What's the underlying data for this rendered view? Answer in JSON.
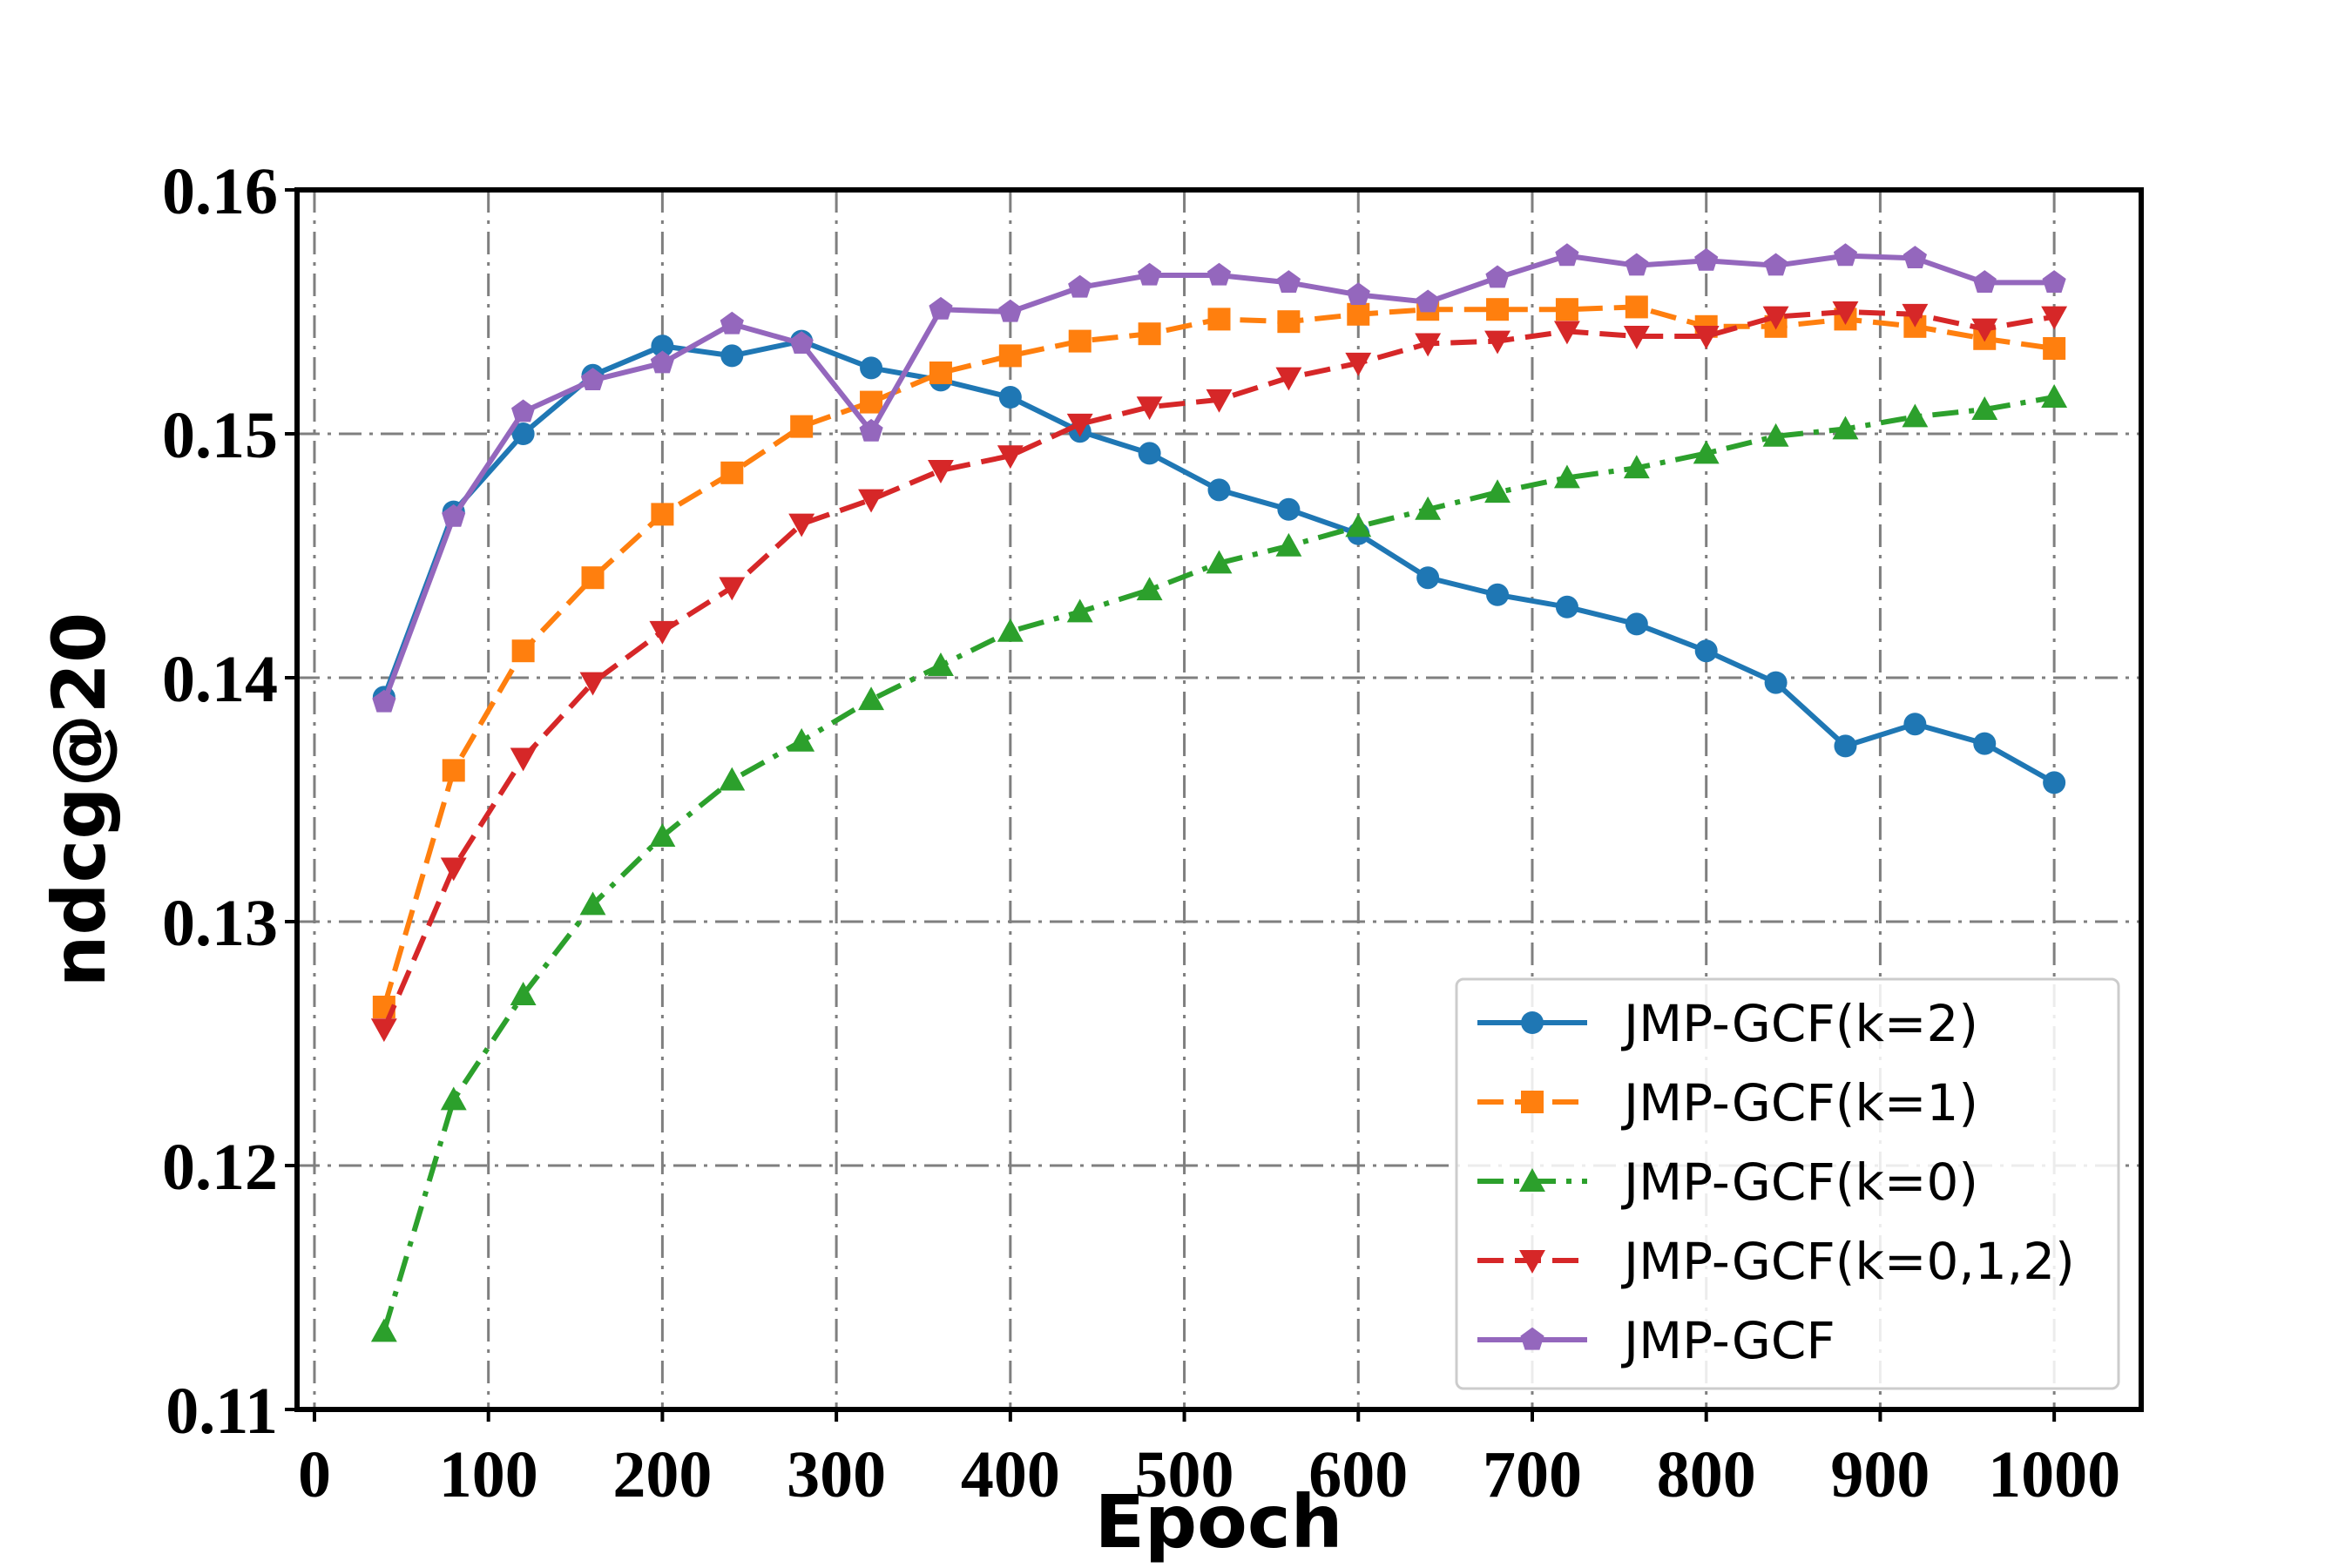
{
  "chart_data": {
    "type": "line",
    "title": "",
    "xlabel": "Epoch",
    "ylabel": "ndcg@20",
    "xlim": [
      -10,
      1050
    ],
    "ylim": [
      0.11,
      0.16
    ],
    "xticks": [
      0,
      100,
      200,
      300,
      400,
      500,
      600,
      700,
      800,
      900,
      1000
    ],
    "yticks": [
      0.11,
      0.12,
      0.13,
      0.14,
      0.15,
      0.16
    ],
    "xtick_labels": [
      "0",
      "100",
      "200",
      "300",
      "400",
      "500",
      "600",
      "700",
      "800",
      "900",
      "1000"
    ],
    "ytick_labels": [
      "0.11",
      "0.12",
      "0.13",
      "0.14",
      "0.15",
      "0.16"
    ],
    "grid": true,
    "legend_position": "bottom-right",
    "x": [
      40,
      80,
      120,
      160,
      200,
      240,
      280,
      320,
      360,
      400,
      440,
      480,
      520,
      560,
      600,
      640,
      680,
      720,
      760,
      800,
      840,
      880,
      920,
      960,
      1000
    ],
    "series": [
      {
        "name": "JMP-GCF(k=2)",
        "color": "#1f77b4",
        "marker": "circle",
        "linestyle": "solid",
        "values": [
          0.1392,
          0.1468,
          0.15,
          0.1524,
          0.1536,
          0.1532,
          0.1538,
          0.1527,
          0.1522,
          0.1515,
          0.1501,
          0.1492,
          0.1477,
          0.1469,
          0.1459,
          0.1441,
          0.1434,
          0.1429,
          0.1422,
          0.1411,
          0.1398,
          0.1372,
          0.1381,
          0.1373,
          0.1357
        ]
      },
      {
        "name": "JMP-GCF(k=1)",
        "color": "#ff7f0e",
        "marker": "square",
        "linestyle": "dashed",
        "values": [
          0.1265,
          0.1362,
          0.1411,
          0.1441,
          0.1467,
          0.1484,
          0.1503,
          0.1513,
          0.1525,
          0.1532,
          0.1538,
          0.1541,
          0.1547,
          0.1546,
          0.1549,
          0.1551,
          0.1551,
          0.1551,
          0.1552,
          0.1544,
          0.1544,
          0.1547,
          0.1544,
          0.1539,
          0.1535
        ]
      },
      {
        "name": "JMP-GCF(k=0)",
        "color": "#2ca02c",
        "marker": "triangle-up",
        "linestyle": "dashdot",
        "values": [
          0.1132,
          0.1227,
          0.127,
          0.1307,
          0.1335,
          0.1358,
          0.1374,
          0.1391,
          0.1405,
          0.1419,
          0.1427,
          0.1436,
          0.1447,
          0.1454,
          0.1462,
          0.1469,
          0.1476,
          0.1482,
          0.1486,
          0.1492,
          0.1499,
          0.1502,
          0.1507,
          0.151,
          0.1515
        ]
      },
      {
        "name": "JMP-GCF(k=0,1,2)",
        "color": "#d62728",
        "marker": "triangle-down",
        "linestyle": "dashed",
        "values": [
          0.1256,
          0.1322,
          0.1367,
          0.1398,
          0.1419,
          0.1437,
          0.1463,
          0.1473,
          0.1485,
          0.1491,
          0.1504,
          0.1511,
          0.1514,
          0.1523,
          0.1529,
          0.1537,
          0.1538,
          0.1542,
          0.154,
          0.154,
          0.1548,
          0.155,
          0.1549,
          0.1543,
          0.1548
        ]
      },
      {
        "name": "JMP-GCF",
        "color": "#9467bd",
        "marker": "pentagon",
        "linestyle": "solid",
        "values": [
          0.139,
          0.1466,
          0.1509,
          0.1522,
          0.1529,
          0.1545,
          0.1537,
          0.1501,
          0.1551,
          0.155,
          0.156,
          0.1565,
          0.1565,
          0.1562,
          0.1557,
          0.1554,
          0.1564,
          0.1573,
          0.1569,
          0.1571,
          0.1569,
          0.1573,
          0.1572,
          0.1562,
          0.1562
        ]
      }
    ]
  }
}
